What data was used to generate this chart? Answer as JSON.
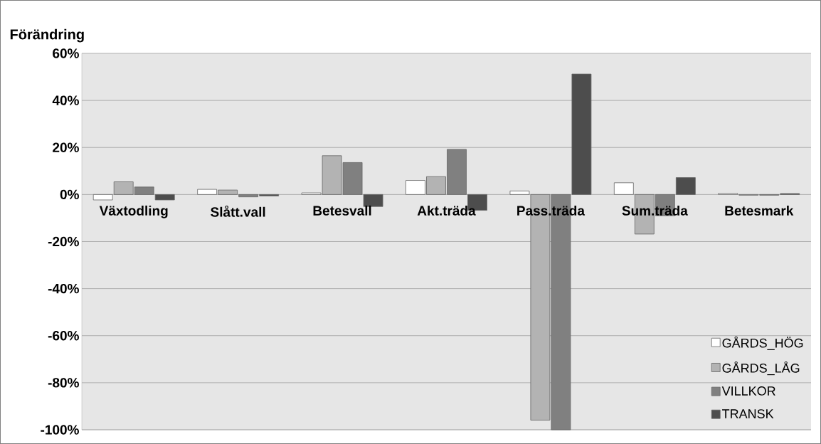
{
  "chart_data": {
    "type": "bar",
    "title": "Förändring",
    "categories": [
      "Växtodling",
      "Slått.vall",
      "Betesvall",
      "Akt.träda",
      "Pass.träda",
      "Sum.träda",
      "Betesmark"
    ],
    "series": [
      {
        "name": "GÅRDS_HÖG",
        "color": "#ffffff",
        "values": [
          -2.3,
          2.2,
          0.7,
          6.0,
          1.5,
          5.0,
          0.5
        ]
      },
      {
        "name": "GÅRDS_LÅG",
        "color": "#b3b3b3",
        "values": [
          5.4,
          1.9,
          16.5,
          7.6,
          -95.9,
          -16.8,
          -0.3
        ]
      },
      {
        "name": "VILLKOR",
        "color": "#808080",
        "values": [
          3.2,
          -1.0,
          13.6,
          19.2,
          -100,
          -9.0,
          -0.3
        ]
      },
      {
        "name": "TRANSK",
        "color": "#4d4d4d",
        "values": [
          -2.3,
          -0.6,
          -5.1,
          -6.7,
          51.2,
          7.2,
          0.4
        ]
      }
    ],
    "ylim": [
      -100,
      60
    ],
    "yticks": [
      {
        "value": -100,
        "label": "-100%"
      },
      {
        "value": -80,
        "label": "-80%"
      },
      {
        "value": -60,
        "label": "-60%"
      },
      {
        "value": -40,
        "label": "-40%"
      },
      {
        "value": -20,
        "label": "-20%"
      },
      {
        "value": 0,
        "label": "0%"
      },
      {
        "value": 20,
        "label": "20%"
      },
      {
        "value": 40,
        "label": "40%"
      },
      {
        "value": 60,
        "label": "60%"
      }
    ],
    "grid": "y",
    "legend": "bottom right"
  }
}
